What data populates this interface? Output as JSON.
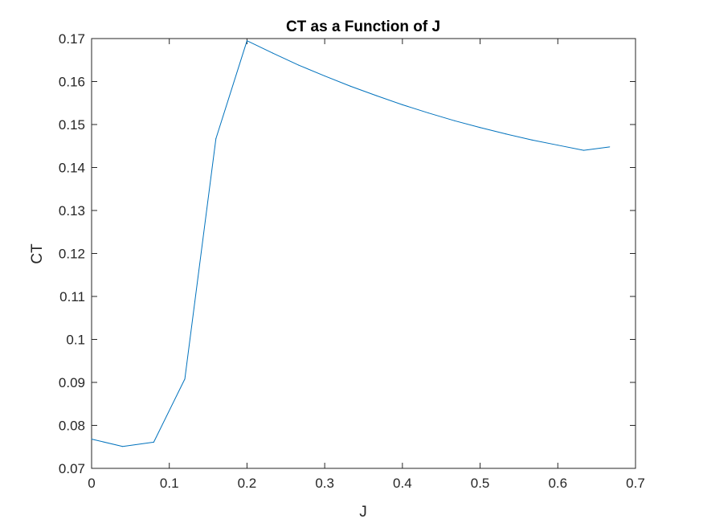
{
  "chart_data": {
    "type": "line",
    "title": "CT as a Function of J",
    "xlabel": "J",
    "ylabel": "CT",
    "xlim": [
      0,
      0.7
    ],
    "ylim": [
      0.07,
      0.17
    ],
    "xticks": [
      "0",
      "0.1",
      "0.2",
      "0.3",
      "0.4",
      "0.5",
      "0.6",
      "0.7"
    ],
    "yticks": [
      "0.07",
      "0.08",
      "0.09",
      "0.1",
      "0.11",
      "0.12",
      "0.13",
      "0.14",
      "0.15",
      "0.16",
      "0.17"
    ],
    "grid": false,
    "box": true,
    "line_color": "#0072bd",
    "axis_color": "#262626",
    "series": [
      {
        "x": [
          0,
          0.04,
          0.08,
          0.12,
          0.16,
          0.2,
          0.2333,
          0.2667,
          0.3,
          0.3333,
          0.3667,
          0.4,
          0.4333,
          0.4667,
          0.5,
          0.5333,
          0.5667,
          0.6,
          0.6333,
          0.6667
        ],
        "y": [
          0.0768,
          0.0751,
          0.0761,
          0.0908,
          0.1467,
          0.1695,
          0.1666,
          0.1638,
          0.1613,
          0.1589,
          0.1567,
          0.1546,
          0.1527,
          0.1509,
          0.1493,
          0.1478,
          0.1464,
          0.1452,
          0.144,
          0.1448
        ]
      }
    ]
  }
}
